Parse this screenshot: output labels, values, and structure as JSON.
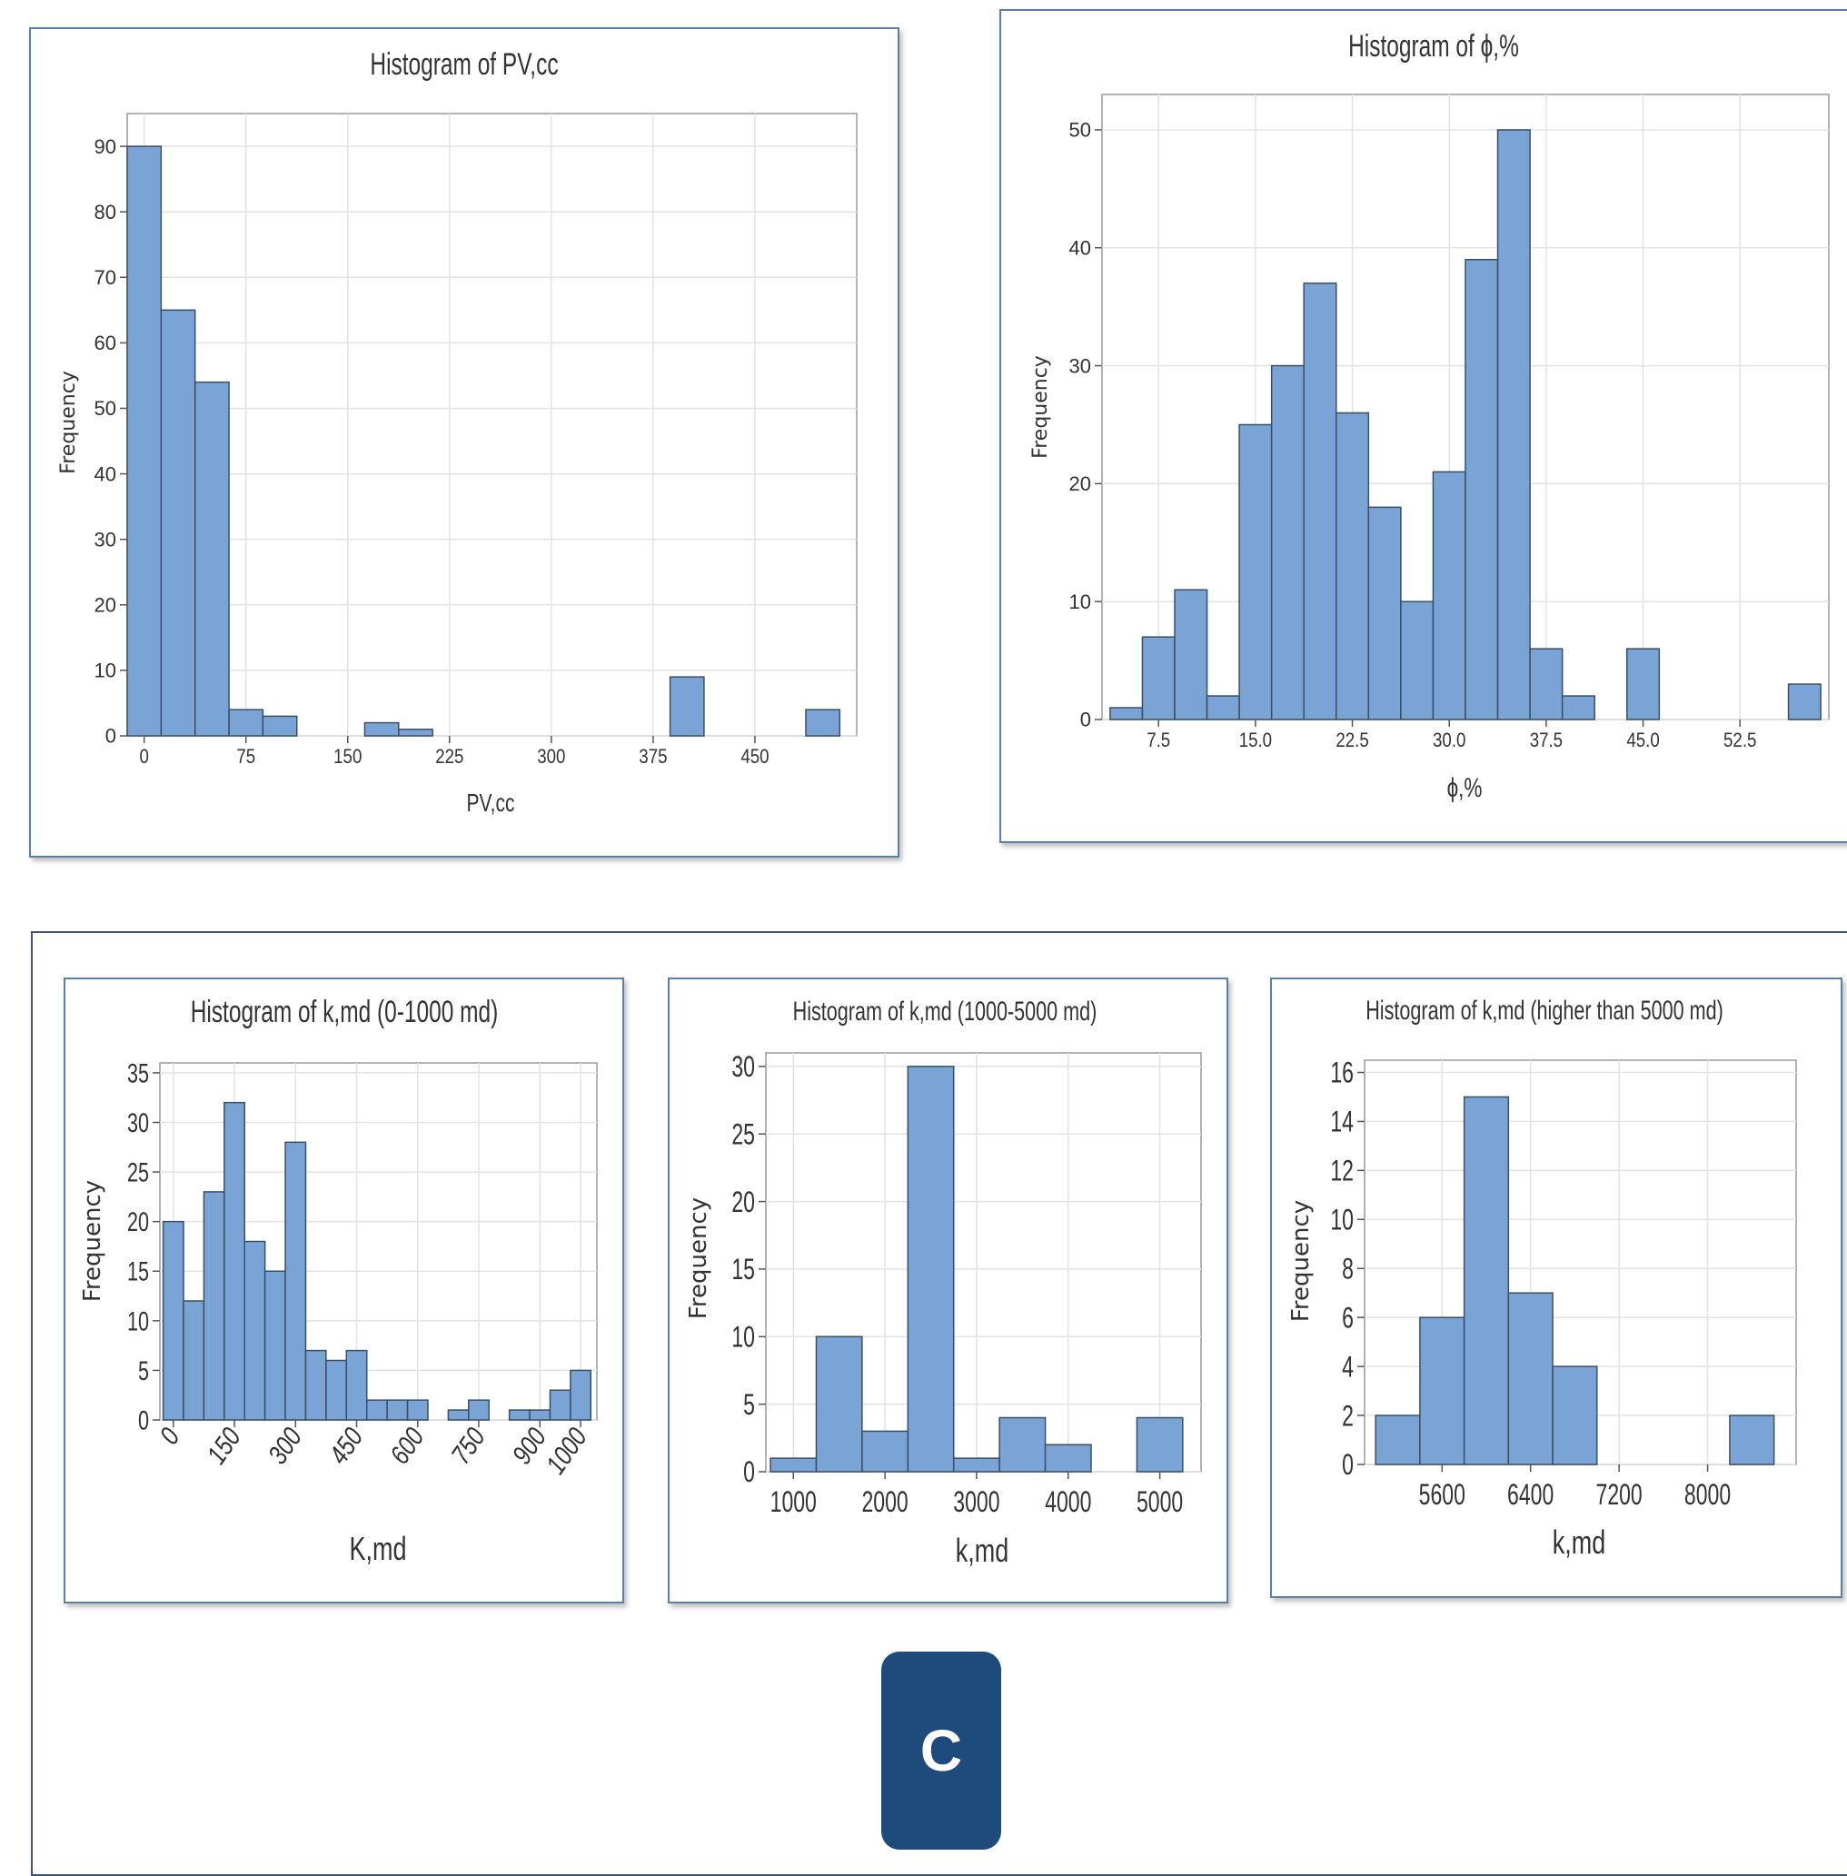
{
  "colors": {
    "bar": "#7aa3d6",
    "bar_edge": "#3b4f63",
    "grid": "#e3e3e3",
    "frame": "#5b7fa6",
    "badge": "#1f4a7c"
  },
  "badge_label": "C",
  "chart_data": [
    {
      "id": "pv",
      "type": "bar",
      "title": "Histogram of PV,cc",
      "xlabel": "PV,cc",
      "ylabel": "Frequency",
      "xlim": [
        -12.5,
        525
      ],
      "ylim": [
        0,
        95
      ],
      "xticks": [
        0,
        75,
        150,
        225,
        300,
        375,
        450
      ],
      "yticks": [
        0,
        10,
        20,
        30,
        40,
        50,
        60,
        70,
        80,
        90
      ],
      "bins": [
        {
          "x0": -12.5,
          "x1": 12.5,
          "count": 90
        },
        {
          "x0": 12.5,
          "x1": 37.5,
          "count": 65
        },
        {
          "x0": 37.5,
          "x1": 62.5,
          "count": 54
        },
        {
          "x0": 62.5,
          "x1": 87.5,
          "count": 4
        },
        {
          "x0": 87.5,
          "x1": 112.5,
          "count": 3
        },
        {
          "x0": 162.5,
          "x1": 187.5,
          "count": 2
        },
        {
          "x0": 187.5,
          "x1": 212.5,
          "count": 1
        },
        {
          "x0": 387.5,
          "x1": 412.5,
          "count": 9
        },
        {
          "x0": 487.5,
          "x1": 512.5,
          "count": 4
        }
      ]
    },
    {
      "id": "phi",
      "type": "bar",
      "title": "Histogram of ϕ,%",
      "xlabel": "ϕ,%",
      "ylabel": "Frequency",
      "xlim": [
        3.125,
        59.375
      ],
      "ylim": [
        0,
        53
      ],
      "xticks": [
        "7.5",
        "15.0",
        "22.5",
        "30.0",
        "37.5",
        "45.0",
        "52.5"
      ],
      "yticks": [
        0,
        10,
        20,
        30,
        40,
        50
      ],
      "bins": [
        {
          "x0": 3.75,
          "x1": 6.25,
          "count": 1
        },
        {
          "x0": 6.25,
          "x1": 8.75,
          "count": 7
        },
        {
          "x0": 8.75,
          "x1": 11.25,
          "count": 11
        },
        {
          "x0": 11.25,
          "x1": 13.75,
          "count": 2
        },
        {
          "x0": 13.75,
          "x1": 16.25,
          "count": 25
        },
        {
          "x0": 16.25,
          "x1": 18.75,
          "count": 30
        },
        {
          "x0": 18.75,
          "x1": 21.25,
          "count": 37
        },
        {
          "x0": 21.25,
          "x1": 23.75,
          "count": 26
        },
        {
          "x0": 23.75,
          "x1": 26.25,
          "count": 18
        },
        {
          "x0": 26.25,
          "x1": 28.75,
          "count": 10
        },
        {
          "x0": 28.75,
          "x1": 31.25,
          "count": 21
        },
        {
          "x0": 31.25,
          "x1": 33.75,
          "count": 39
        },
        {
          "x0": 33.75,
          "x1": 36.25,
          "count": 50
        },
        {
          "x0": 36.25,
          "x1": 38.75,
          "count": 6
        },
        {
          "x0": 38.75,
          "x1": 41.25,
          "count": 2
        },
        {
          "x0": 43.75,
          "x1": 46.25,
          "count": 6
        },
        {
          "x0": 56.25,
          "x1": 58.75,
          "count": 3
        }
      ]
    },
    {
      "id": "k1",
      "type": "bar",
      "title": "Histogram of k,md (0-1000 md)",
      "xlabel": "K,md",
      "ylabel": "Frequency",
      "xlim": [
        -33,
        1040
      ],
      "ylim": [
        0,
        36
      ],
      "xticks": [
        0,
        150,
        300,
        450,
        600,
        750,
        900,
        1000
      ],
      "yticks": [
        0,
        5,
        10,
        15,
        20,
        25,
        30,
        35
      ],
      "bins": [
        {
          "x0": -25,
          "x1": 25,
          "count": 20
        },
        {
          "x0": 25,
          "x1": 75,
          "count": 12
        },
        {
          "x0": 75,
          "x1": 125,
          "count": 23
        },
        {
          "x0": 125,
          "x1": 175,
          "count": 32
        },
        {
          "x0": 175,
          "x1": 225,
          "count": 18
        },
        {
          "x0": 225,
          "x1": 275,
          "count": 15
        },
        {
          "x0": 275,
          "x1": 325,
          "count": 28
        },
        {
          "x0": 325,
          "x1": 375,
          "count": 7
        },
        {
          "x0": 375,
          "x1": 425,
          "count": 6
        },
        {
          "x0": 425,
          "x1": 475,
          "count": 7
        },
        {
          "x0": 475,
          "x1": 525,
          "count": 2
        },
        {
          "x0": 525,
          "x1": 575,
          "count": 2
        },
        {
          "x0": 575,
          "x1": 625,
          "count": 2
        },
        {
          "x0": 675,
          "x1": 725,
          "count": 1
        },
        {
          "x0": 725,
          "x1": 775,
          "count": 2
        },
        {
          "x0": 825,
          "x1": 875,
          "count": 1
        },
        {
          "x0": 875,
          "x1": 925,
          "count": 1
        },
        {
          "x0": 925,
          "x1": 975,
          "count": 3
        },
        {
          "x0": 975,
          "x1": 1025,
          "count": 5
        }
      ]
    },
    {
      "id": "k2",
      "type": "bar",
      "title": "Histogram of k,md (1000-5000 md)",
      "xlabel": "k,md",
      "ylabel": "Frequency",
      "xlim": [
        700,
        5450
      ],
      "ylim": [
        0,
        31
      ],
      "xticks": [
        1000,
        2000,
        3000,
        4000,
        5000
      ],
      "yticks": [
        0,
        5,
        10,
        15,
        20,
        25,
        30
      ],
      "bins": [
        {
          "x0": 750,
          "x1": 1250,
          "count": 1
        },
        {
          "x0": 1250,
          "x1": 1750,
          "count": 10
        },
        {
          "x0": 1750,
          "x1": 2250,
          "count": 3
        },
        {
          "x0": 2250,
          "x1": 2750,
          "count": 30
        },
        {
          "x0": 2750,
          "x1": 3250,
          "count": 1
        },
        {
          "x0": 3250,
          "x1": 3750,
          "count": 4
        },
        {
          "x0": 3750,
          "x1": 4250,
          "count": 2
        },
        {
          "x0": 4750,
          "x1": 5250,
          "count": 4
        }
      ]
    },
    {
      "id": "k3",
      "type": "bar",
      "title": "Histogram of k,md (higher than 5000 md)",
      "xlabel": "k,md",
      "ylabel": "Frequency",
      "xlim": [
        4900,
        8800
      ],
      "ylim": [
        0,
        16.5
      ],
      "xticks": [
        5600,
        6400,
        7200,
        8000
      ],
      "yticks": [
        0,
        2,
        4,
        6,
        8,
        10,
        12,
        14,
        16
      ],
      "bins": [
        {
          "x0": 5000,
          "x1": 5400,
          "count": 2
        },
        {
          "x0": 5400,
          "x1": 5800,
          "count": 6
        },
        {
          "x0": 5800,
          "x1": 6200,
          "count": 15
        },
        {
          "x0": 6200,
          "x1": 6600,
          "count": 7
        },
        {
          "x0": 6600,
          "x1": 7000,
          "count": 4
        },
        {
          "x0": 8200,
          "x1": 8600,
          "count": 2
        }
      ]
    }
  ]
}
